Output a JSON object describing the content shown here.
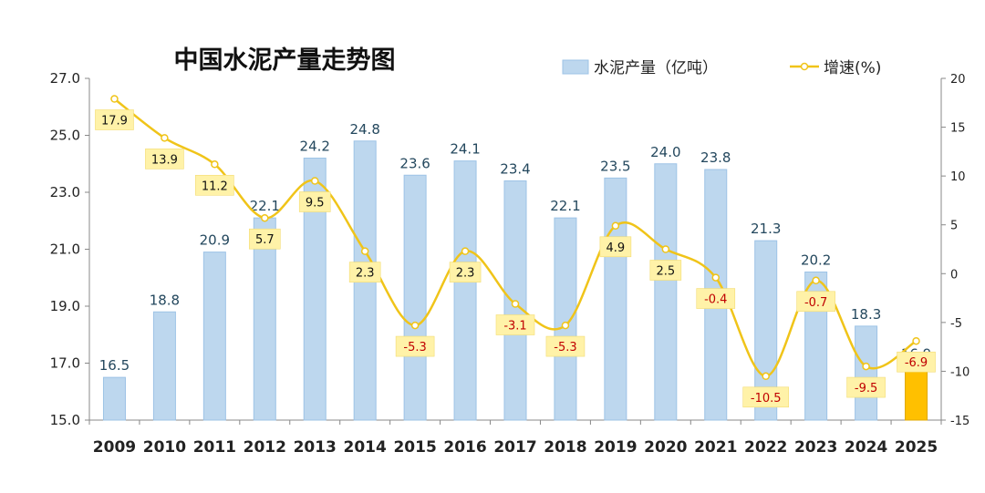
{
  "chart_data": {
    "type": "bar+line",
    "title": "中国水泥产量走势图",
    "categories": [
      "2009",
      "2010",
      "2011",
      "2012",
      "2013",
      "2014",
      "2015",
      "2016",
      "2017",
      "2018",
      "2019",
      "2020",
      "2021",
      "2022",
      "2023",
      "2024",
      "2025"
    ],
    "series": [
      {
        "name": "水泥产量（亿吨）",
        "type": "bar",
        "axis": "left",
        "values": [
          16.5,
          18.8,
          20.9,
          22.1,
          24.2,
          24.8,
          23.6,
          24.1,
          23.4,
          22.1,
          23.5,
          24.0,
          23.8,
          21.3,
          20.2,
          18.3,
          16.9
        ],
        "labels": [
          "16.5",
          "18.8",
          "20.9",
          "22.1",
          "24.2",
          "24.8",
          "23.6",
          "24.1",
          "23.4",
          "22.1",
          "23.5",
          "24.0",
          "23.8",
          "21.3",
          "20.2",
          "18.3",
          "16.9"
        ],
        "color": "#bdd7ee",
        "stroke": "#9dc3e6",
        "highlight_color": "#ffc000",
        "highlight_index": 16
      },
      {
        "name": "增速(%)",
        "type": "line",
        "axis": "right",
        "values": [
          17.9,
          13.9,
          11.2,
          5.7,
          9.5,
          2.3,
          -5.3,
          2.3,
          -3.1,
          -5.3,
          4.9,
          2.5,
          -0.4,
          -10.5,
          -0.7,
          -9.5,
          -6.9
        ],
        "labels": [
          "17.9",
          "13.9",
          "11.2",
          "5.7",
          "9.5",
          "2.3",
          "-5.3",
          "2.3",
          "-3.1",
          "-5.3",
          "4.9",
          "2.5",
          "-0.4",
          "-10.5",
          "-0.7",
          "-9.5",
          "-6.9"
        ],
        "color": "#f0c419",
        "label_bg": "#fff2a8",
        "negative_label_color": "#c00000",
        "positive_label_color": "#111111"
      }
    ],
    "y_left": {
      "min": 15.0,
      "max": 27.0,
      "ticks": [
        "15.0",
        "17.0",
        "19.0",
        "21.0",
        "23.0",
        "25.0",
        "27.0"
      ]
    },
    "y_right": {
      "min": -15,
      "max": 20,
      "ticks": [
        "-15",
        "-10",
        "-5",
        "0",
        "5",
        "10",
        "15",
        "20"
      ]
    },
    "grid": false,
    "legend_position": "top-right"
  }
}
